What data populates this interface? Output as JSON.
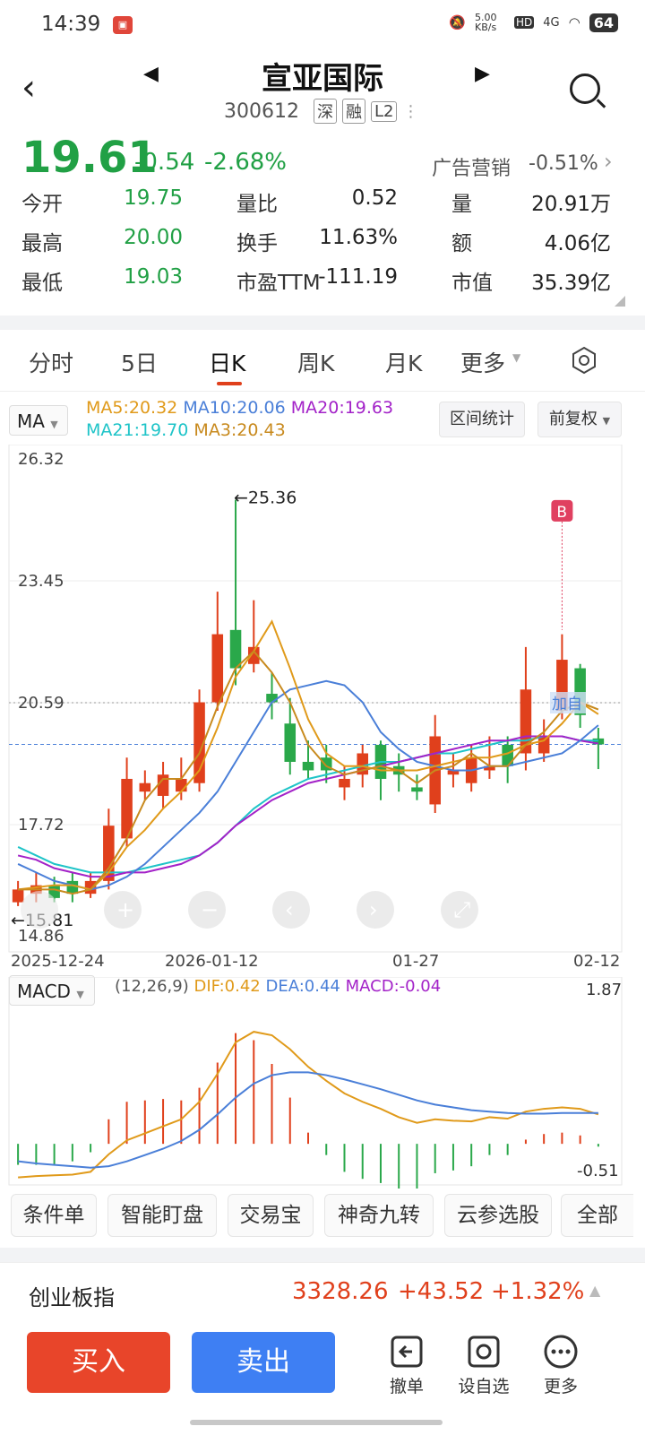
{
  "status": {
    "time": "14:39",
    "net_speed": "5.00 KB/s",
    "hd": "HD",
    "signal": "4G",
    "battery": "64"
  },
  "header": {
    "stock_name": "宣亚国际",
    "stock_code": "300612",
    "tags": [
      "深",
      "融",
      "L2"
    ]
  },
  "quote": {
    "price": "19.61",
    "change": "-0.54",
    "change_pct": "-2.68%",
    "ad_label": "广告营销",
    "ad_pct": "-0.51%",
    "rows": [
      [
        {
          "label": "今开",
          "value": "19.75",
          "color": "green"
        },
        {
          "label": "量比",
          "value": "0.52"
        },
        {
          "label": "量",
          "value": "20.91万"
        }
      ],
      [
        {
          "label": "最高",
          "value": "20.00",
          "color": "green"
        },
        {
          "label": "换手",
          "value": "11.63%"
        },
        {
          "label": "额",
          "value": "4.06亿"
        }
      ],
      [
        {
          "label": "最低",
          "value": "19.03",
          "color": "green"
        },
        {
          "label": "市盈TTM",
          "value": "-111.19"
        },
        {
          "label": "市值",
          "value": "35.39亿"
        }
      ]
    ]
  },
  "tabs": [
    "分时",
    "5日",
    "日K",
    "周K",
    "月K",
    "更多"
  ],
  "active_tab": "日K",
  "toolbar": {
    "ma_label": "MA",
    "range_stats": "区间统计",
    "adjust": "前复权"
  },
  "ma_legend": {
    "ma5": "MA5:20.32",
    "ma10": "MA10:20.06",
    "ma20": "MA20:19.63",
    "ma21": "MA21:19.70",
    "ma3": "MA3:20.43"
  },
  "chart_colors": {
    "up": "#e0401c",
    "down": "#2aa84a",
    "ma5": "#e09a1a",
    "ma10": "#4a7fd8",
    "ma20": "#a322c8",
    "ma21": "#1fc4c8",
    "ma3": "#c88a1e"
  },
  "chart_data": [
    {
      "type": "candlestick",
      "ylim": [
        14.86,
        26.32
      ],
      "y_ticks": [
        "26.32",
        "23.45",
        "20.59",
        "17.72",
        "14.86"
      ],
      "x_ticks": [
        "2025-12-24",
        "2026-01-12",
        "01-27",
        "02-12"
      ],
      "max_label": "25.36",
      "min_label": "15.81",
      "marker": "B",
      "tag_label": "加自",
      "candles": [
        {
          "o": 15.9,
          "c": 16.2,
          "h": 16.4,
          "l": 15.81
        },
        {
          "o": 16.1,
          "c": 16.3,
          "h": 16.6,
          "l": 15.9
        },
        {
          "o": 16.3,
          "c": 16.0,
          "h": 16.5,
          "l": 15.9
        },
        {
          "o": 16.4,
          "c": 16.1,
          "h": 16.6,
          "l": 15.9
        },
        {
          "o": 16.1,
          "c": 16.4,
          "h": 16.6,
          "l": 16.0
        },
        {
          "o": 16.4,
          "c": 17.7,
          "h": 18.1,
          "l": 16.2
        },
        {
          "o": 17.4,
          "c": 18.8,
          "h": 19.3,
          "l": 17.2
        },
        {
          "o": 18.5,
          "c": 18.7,
          "h": 19.0,
          "l": 18.3
        },
        {
          "o": 18.4,
          "c": 18.9,
          "h": 19.2,
          "l": 18.1
        },
        {
          "o": 18.5,
          "c": 18.8,
          "h": 19.3,
          "l": 18.3
        },
        {
          "o": 18.7,
          "c": 20.6,
          "h": 20.9,
          "l": 18.5
        },
        {
          "o": 20.6,
          "c": 22.2,
          "h": 23.2,
          "l": 20.4
        },
        {
          "o": 22.3,
          "c": 21.4,
          "h": 25.36,
          "l": 21.0
        },
        {
          "o": 21.5,
          "c": 21.9,
          "h": 23.0,
          "l": 21.3
        },
        {
          "o": 20.8,
          "c": 20.6,
          "h": 21.3,
          "l": 20.2
        },
        {
          "o": 20.1,
          "c": 19.2,
          "h": 20.7,
          "l": 18.9
        },
        {
          "o": 19.2,
          "c": 19.0,
          "h": 19.7,
          "l": 18.8
        },
        {
          "o": 19.3,
          "c": 19.0,
          "h": 19.6,
          "l": 18.7
        },
        {
          "o": 18.6,
          "c": 18.8,
          "h": 19.1,
          "l": 18.3
        },
        {
          "o": 18.9,
          "c": 19.4,
          "h": 19.6,
          "l": 18.6
        },
        {
          "o": 19.6,
          "c": 18.8,
          "h": 19.7,
          "l": 18.3
        },
        {
          "o": 19.1,
          "c": 18.9,
          "h": 19.4,
          "l": 18.5
        },
        {
          "o": 18.6,
          "c": 18.5,
          "h": 18.9,
          "l": 18.3
        },
        {
          "o": 18.2,
          "c": 19.8,
          "h": 20.3,
          "l": 18.0
        },
        {
          "o": 18.9,
          "c": 19.0,
          "h": 19.4,
          "l": 18.6
        },
        {
          "o": 18.7,
          "c": 19.3,
          "h": 19.6,
          "l": 18.5
        },
        {
          "o": 19.0,
          "c": 19.1,
          "h": 19.8,
          "l": 18.8
        },
        {
          "o": 19.6,
          "c": 19.1,
          "h": 19.8,
          "l": 18.7
        },
        {
          "o": 19.4,
          "c": 20.9,
          "h": 21.9,
          "l": 19.0
        },
        {
          "o": 19.4,
          "c": 19.8,
          "h": 20.2,
          "l": 19.2
        },
        {
          "o": 20.4,
          "c": 21.6,
          "h": 22.2,
          "l": 20.2
        },
        {
          "o": 21.4,
          "c": 20.3,
          "h": 21.5,
          "l": 20.0
        },
        {
          "o": 19.75,
          "c": 19.61,
          "h": 20.0,
          "l": 19.03
        }
      ],
      "ma5": [
        16.2,
        16.25,
        16.3,
        16.3,
        16.2,
        16.6,
        17.2,
        17.6,
        18.1,
        18.5,
        19.0,
        20.0,
        21.2,
        21.8,
        22.5,
        21.4,
        20.2,
        19.4,
        19.1,
        19.1,
        19.0,
        19.0,
        19.0,
        19.1,
        19.2,
        19.3,
        19.3,
        19.4,
        19.6,
        19.7,
        20.1,
        20.6,
        20.32
      ],
      "ma3": [
        16.2,
        16.2,
        16.2,
        16.1,
        16.2,
        16.7,
        17.4,
        18.3,
        18.8,
        18.8,
        19.4,
        20.5,
        21.4,
        21.8,
        21.3,
        20.6,
        19.6,
        19.1,
        18.9,
        19.0,
        19.1,
        19.0,
        18.7,
        19.0,
        19.1,
        19.4,
        19.1,
        19.1,
        19.6,
        19.9,
        20.4,
        20.6,
        20.43
      ],
      "ma10": [
        16.8,
        16.6,
        16.4,
        16.3,
        16.2,
        16.3,
        16.5,
        16.8,
        17.2,
        17.6,
        18.0,
        18.5,
        19.2,
        19.9,
        20.6,
        20.9,
        21.0,
        21.1,
        21.0,
        20.6,
        19.9,
        19.5,
        19.2,
        19.1,
        19.0,
        19.0,
        19.1,
        19.1,
        19.2,
        19.3,
        19.4,
        19.7,
        20.06
      ],
      "ma20": [
        17.0,
        16.9,
        16.7,
        16.6,
        16.5,
        16.5,
        16.6,
        16.6,
        16.7,
        16.8,
        17.0,
        17.3,
        17.7,
        18.0,
        18.3,
        18.5,
        18.7,
        18.8,
        18.9,
        19.0,
        19.1,
        19.2,
        19.3,
        19.4,
        19.5,
        19.6,
        19.7,
        19.7,
        19.8,
        19.8,
        19.8,
        19.7,
        19.63
      ],
      "ma21": [
        17.2,
        17.0,
        16.8,
        16.7,
        16.6,
        16.6,
        16.6,
        16.7,
        16.8,
        16.9,
        17.0,
        17.3,
        17.7,
        18.1,
        18.4,
        18.6,
        18.8,
        18.9,
        19.0,
        19.1,
        19.2,
        19.2,
        19.3,
        19.4,
        19.4,
        19.5,
        19.6,
        19.7,
        19.7,
        19.8,
        19.8,
        19.7,
        19.7
      ]
    },
    {
      "type": "macd",
      "label": "MACD",
      "params": "(12,26,9)",
      "dif_label": "DIF:0.42",
      "dea_label": "DEA:0.44",
      "macd_label": "MACD:-0.04",
      "ylim": [
        -0.51,
        1.87
      ],
      "y_ticks": [
        "1.87",
        "-0.51"
      ],
      "dif": [
        -0.48,
        -0.46,
        -0.45,
        -0.44,
        -0.4,
        -0.15,
        0.05,
        0.15,
        0.25,
        0.35,
        0.6,
        1.0,
        1.45,
        1.6,
        1.55,
        1.35,
        1.1,
        0.9,
        0.72,
        0.6,
        0.5,
        0.38,
        0.3,
        0.35,
        0.33,
        0.32,
        0.38,
        0.36,
        0.46,
        0.5,
        0.52,
        0.5,
        0.42
      ],
      "dea": [
        -0.25,
        -0.28,
        -0.3,
        -0.32,
        -0.34,
        -0.32,
        -0.25,
        -0.16,
        -0.07,
        0.04,
        0.2,
        0.42,
        0.66,
        0.86,
        0.98,
        1.02,
        1.02,
        0.98,
        0.92,
        0.85,
        0.78,
        0.7,
        0.62,
        0.56,
        0.52,
        0.48,
        0.46,
        0.44,
        0.43,
        0.43,
        0.44,
        0.44,
        0.44
      ],
      "macd": [
        -0.3,
        -0.3,
        -0.3,
        -0.25,
        -0.12,
        0.35,
        0.6,
        0.62,
        0.64,
        0.62,
        0.8,
        1.16,
        1.58,
        1.48,
        1.14,
        0.66,
        0.16,
        -0.16,
        -0.4,
        -0.5,
        -0.56,
        -0.64,
        -0.64,
        -0.42,
        -0.38,
        -0.32,
        -0.16,
        -0.16,
        0.06,
        0.14,
        0.16,
        0.12,
        -0.04
      ]
    }
  ],
  "tools": [
    "条件单",
    "智能盯盘",
    "交易宝",
    "神奇九转",
    "云参选股",
    "全部"
  ],
  "index": {
    "name": "创业板指",
    "value": "3328.26",
    "change": "+43.52",
    "pct": "+1.32%"
  },
  "actions": {
    "buy": "买入",
    "sell": "卖出",
    "cancel": "撤单",
    "watchlist": "设自选",
    "more": "更多"
  }
}
